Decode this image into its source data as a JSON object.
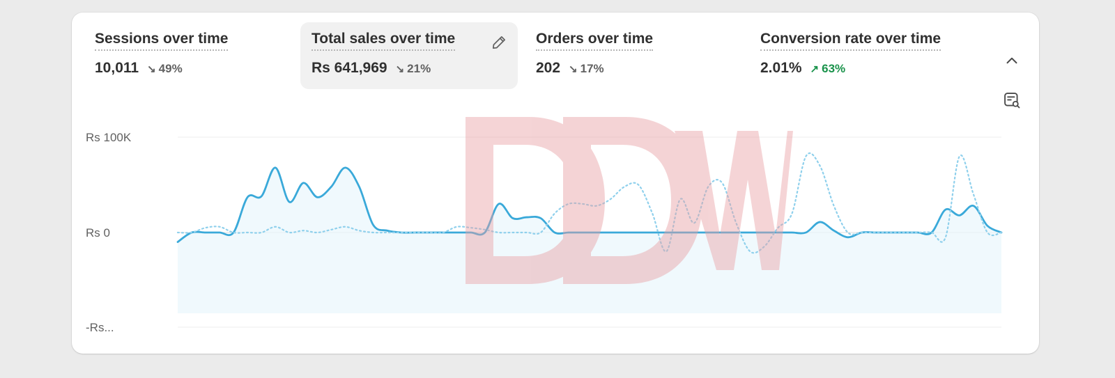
{
  "metrics": [
    {
      "title": "Sessions over time",
      "value": "10,011",
      "delta": "49%",
      "trend": "down"
    },
    {
      "title": "Total sales over time",
      "value": "Rs 641,969",
      "delta": "21%",
      "trend": "down"
    },
    {
      "title": "Orders over time",
      "value": "202",
      "delta": "17%",
      "trend": "down"
    },
    {
      "title": "Conversion rate over time",
      "value": "2.01%",
      "delta": "63%",
      "trend": "up"
    }
  ],
  "icons": {
    "edit": "pencil-icon",
    "collapse": "chevron-up-icon",
    "explore": "chart-explore-icon",
    "arrow_down": "↘",
    "arrow_up": "↗"
  },
  "watermark": "DDW",
  "colors": {
    "line": "#3aa9d9",
    "line_dotted": "#8fd0ec",
    "area": "#eaf6fc",
    "delta_up": "#19924a",
    "delta_down": "#616161",
    "watermark": "#e8a0a3"
  },
  "chart_data": {
    "type": "line",
    "title": "",
    "ylabel": "",
    "xlabel": "",
    "y_ticks": [
      "Rs 100K",
      "Rs 0",
      "-Rs..."
    ],
    "ylim": [
      -100000,
      100000
    ],
    "grid": true,
    "x": [
      0,
      1,
      2,
      3,
      4,
      5,
      6,
      7,
      8,
      9,
      10,
      11,
      12,
      13,
      14,
      15,
      16,
      17,
      18,
      19,
      20,
      21,
      22,
      23,
      24,
      25,
      26,
      27,
      28,
      29,
      30,
      31,
      32,
      33,
      34,
      35,
      36,
      37,
      38,
      39,
      40,
      41,
      42,
      43,
      44,
      45,
      46,
      47,
      48,
      49,
      50,
      51,
      52,
      53,
      54,
      55,
      56,
      57,
      58,
      59
    ],
    "series": [
      {
        "name": "",
        "style": "solid",
        "values": [
          -10000,
          0,
          0,
          0,
          0,
          37000,
          38000,
          68000,
          32000,
          52000,
          37000,
          48000,
          68000,
          48000,
          8000,
          2000,
          0,
          0,
          0,
          0,
          0,
          0,
          0,
          30000,
          15000,
          16000,
          15000,
          0,
          0,
          0,
          0,
          0,
          0,
          0,
          0,
          0,
          0,
          0,
          0,
          0,
          0,
          0,
          0,
          0,
          0,
          0,
          11000,
          2000,
          -5000,
          0,
          0,
          0,
          0,
          0,
          0,
          24000,
          18000,
          28000,
          7000,
          0
        ]
      },
      {
        "name": "",
        "style": "dotted",
        "values": [
          0,
          0,
          5000,
          6000,
          0,
          0,
          0,
          6000,
          0,
          2000,
          0,
          3000,
          6000,
          2000,
          0,
          0,
          0,
          0,
          0,
          0,
          6000,
          5000,
          3000,
          0,
          0,
          0,
          0,
          20000,
          30000,
          30000,
          28000,
          35000,
          48000,
          50000,
          20000,
          -20000,
          35000,
          10000,
          48000,
          52000,
          10000,
          -20000,
          -15000,
          5000,
          20000,
          80000,
          70000,
          28000,
          0,
          0,
          0,
          0,
          0,
          0,
          0,
          -5000,
          80000,
          40000,
          0,
          0
        ]
      }
    ]
  }
}
